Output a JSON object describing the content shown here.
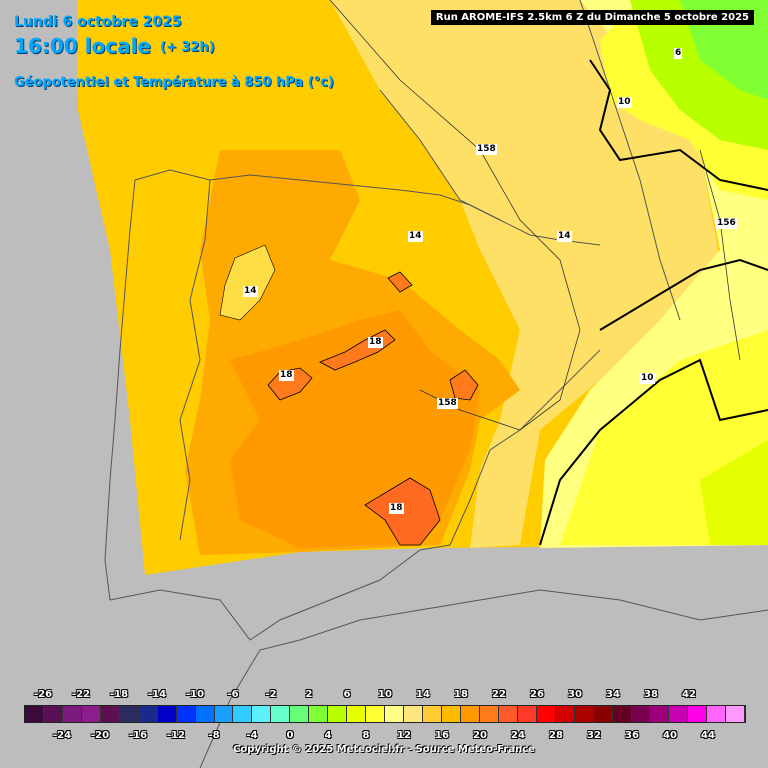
{
  "header": {
    "date": "Lundi 6 octobre 2025",
    "hour": "16:00 locale",
    "lead": "(+ 32h)",
    "parameter": "Géopotentiel et Température à 850 hPa (°c)"
  },
  "run_info": "Run AROME-IFS 2.5km 6 Z du Dimanche 5 octobre 2025",
  "contour_labels": [
    {
      "text": "6"
    },
    {
      "text": "10"
    },
    {
      "text": "158"
    },
    {
      "text": "156"
    },
    {
      "text": "14"
    },
    {
      "text": "14"
    },
    {
      "text": "14"
    },
    {
      "text": "18"
    },
    {
      "text": "18"
    },
    {
      "text": "158"
    },
    {
      "text": "10"
    },
    {
      "text": "18"
    }
  ],
  "legend": {
    "top_ticks": [
      "-26",
      "-22",
      "-18",
      "-14",
      "-10",
      "-6",
      "-2",
      "2",
      "6",
      "10",
      "14",
      "18",
      "22",
      "26",
      "30",
      "34",
      "38",
      "42"
    ],
    "bottom_ticks": [
      "-24",
      "-20",
      "-16",
      "-12",
      "-8",
      "-4",
      "0",
      "4",
      "8",
      "12",
      "16",
      "20",
      "24",
      "28",
      "32",
      "36",
      "40",
      "44"
    ],
    "colors": [
      "#3a0a3a",
      "#5a1057",
      "#7d1a7d",
      "#8c1d8c",
      "#5c1050",
      "#2b2b60",
      "#1a2a8c",
      "#0000c8",
      "#0033ff",
      "#0070ff",
      "#1aa0ff",
      "#33ccff",
      "#5cf0ff",
      "#66ffcc",
      "#66ff77",
      "#80ff33",
      "#b8ff00",
      "#e6ff00",
      "#ffff33",
      "#ffff88",
      "#ffe680",
      "#ffcc33",
      "#ffbb00",
      "#ff9900",
      "#ff7a1a",
      "#ff5a2a",
      "#ff3a2a",
      "#ff0000",
      "#d40000",
      "#aa0000",
      "#880000",
      "#660022",
      "#7a0050",
      "#9b007a",
      "#c800b4",
      "#ff00e6",
      "#ff66ff",
      "#ff99ff"
    ]
  },
  "copyright": "Copyright © 2025 Meteociel.fr - Source Meteo-France"
}
